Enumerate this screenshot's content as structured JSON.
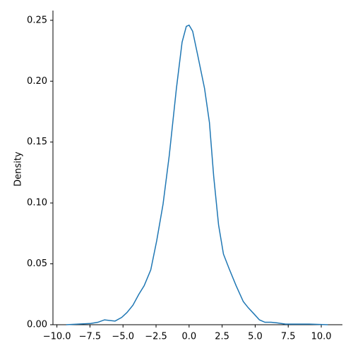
{
  "chart_data": {
    "type": "line",
    "y_label": "Density",
    "color": "#1f77b4",
    "x": [
      -9.3,
      -8.4,
      -7.45,
      -6.9,
      -6.4,
      -6.0,
      -5.6,
      -5.1,
      -4.7,
      -4.25,
      -3.8,
      -3.4,
      -2.9,
      -2.45,
      -1.97,
      -1.5,
      -0.96,
      -0.53,
      -0.21,
      0,
      0.27,
      0.64,
      1.17,
      1.54,
      1.86,
      2.23,
      2.6,
      3.03,
      3.56,
      4.1,
      4.47,
      4.9,
      5.32,
      5.74,
      6.2,
      6.65,
      7.3,
      8.1,
      9.1,
      10.5
    ],
    "values": [
      0,
      0.0005,
      0.001,
      0.002,
      0.004,
      0.0035,
      0.003,
      0.006,
      0.01,
      0.016,
      0.025,
      0.032,
      0.045,
      0.069,
      0.099,
      0.139,
      0.194,
      0.232,
      0.245,
      0.246,
      0.241,
      0.222,
      0.194,
      0.166,
      0.122,
      0.082,
      0.058,
      0.046,
      0.032,
      0.019,
      0.014,
      0.009,
      0.004,
      0.002,
      0.002,
      0.0015,
      0.0005,
      0.0005,
      0.0005,
      0
    ],
    "xlim": [
      -10.3,
      11.6
    ],
    "ylim": [
      0,
      0.258
    ],
    "xticks": [
      {
        "value": -10,
        "label": "−10.0"
      },
      {
        "value": -7.5,
        "label": "−7.5"
      },
      {
        "value": -5,
        "label": "−5.0"
      },
      {
        "value": -2.5,
        "label": "−2.5"
      },
      {
        "value": 0,
        "label": "0.0"
      },
      {
        "value": 2.5,
        "label": "2.5"
      },
      {
        "value": 5,
        "label": "5.0"
      },
      {
        "value": 7.5,
        "label": "7.5"
      },
      {
        "value": 10,
        "label": "10.0"
      }
    ],
    "yticks": [
      {
        "value": 0,
        "label": "0.00"
      },
      {
        "value": 0.05,
        "label": "0.05"
      },
      {
        "value": 0.1,
        "label": "0.10"
      },
      {
        "value": 0.15,
        "label": "0.15"
      },
      {
        "value": 0.2,
        "label": "0.20"
      },
      {
        "value": 0.25,
        "label": "0.25"
      }
    ]
  }
}
